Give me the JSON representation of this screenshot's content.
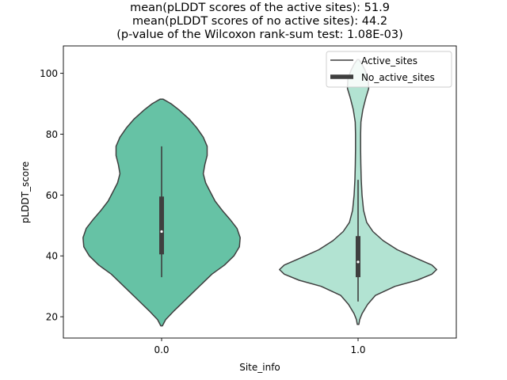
{
  "chart_data": {
    "type": "violin",
    "title_lines": [
      "mean(pLDDT scores of the active sites): 51.9",
      "mean(pLDDT scores of no active sites): 44.2",
      "(p-value of the Wilcoxon rank-sum test: 1.08E-03)"
    ],
    "xlabel": "Site_info",
    "ylabel": "pLDDT_score",
    "categories": [
      "0.0",
      "1.0"
    ],
    "ylim": [
      13,
      109
    ],
    "yticks": [
      20,
      40,
      60,
      80,
      100
    ],
    "legend": {
      "position": "top-right",
      "entries": [
        {
          "label": "Active_sites",
          "style": "thin-line"
        },
        {
          "label": "No_active_sites",
          "style": "thick-line"
        }
      ]
    },
    "series": [
      {
        "name": "0.0",
        "color": "#66c2a5",
        "min": 17,
        "max": 91.5,
        "whisker_low": 33,
        "whisker_high": 76,
        "q1": 40.5,
        "q3": 59.5,
        "median": 48,
        "density_profile": [
          [
            17,
            0.01
          ],
          [
            19,
            0.05
          ],
          [
            22,
            0.16
          ],
          [
            25,
            0.28
          ],
          [
            28,
            0.4
          ],
          [
            31,
            0.52
          ],
          [
            34,
            0.64
          ],
          [
            37,
            0.8
          ],
          [
            40,
            0.92
          ],
          [
            43,
            0.99
          ],
          [
            46,
            1.0
          ],
          [
            49,
            0.96
          ],
          [
            52,
            0.87
          ],
          [
            55,
            0.77
          ],
          [
            58,
            0.68
          ],
          [
            61,
            0.62
          ],
          [
            64,
            0.56
          ],
          [
            67,
            0.53
          ],
          [
            70,
            0.55
          ],
          [
            73,
            0.58
          ],
          [
            76,
            0.58
          ],
          [
            79,
            0.53
          ],
          [
            82,
            0.45
          ],
          [
            85,
            0.35
          ],
          [
            88,
            0.22
          ],
          [
            90,
            0.12
          ],
          [
            91.5,
            0.02
          ]
        ]
      },
      {
        "name": "1.0",
        "color": "#b2e3d2",
        "min": 17.5,
        "max": 104.5,
        "whisker_low": 25,
        "whisker_high": 65,
        "q1": 33,
        "q3": 46.5,
        "median": 38,
        "density_profile": [
          [
            17.5,
            0.01
          ],
          [
            19,
            0.02
          ],
          [
            21,
            0.05
          ],
          [
            24,
            0.12
          ],
          [
            27,
            0.22
          ],
          [
            30,
            0.47
          ],
          [
            32,
            0.75
          ],
          [
            34,
            0.94
          ],
          [
            35.5,
            1.0
          ],
          [
            37,
            0.94
          ],
          [
            39,
            0.76
          ],
          [
            42,
            0.5
          ],
          [
            45,
            0.32
          ],
          [
            48,
            0.19
          ],
          [
            51,
            0.11
          ],
          [
            55,
            0.07
          ],
          [
            60,
            0.05
          ],
          [
            65,
            0.04
          ],
          [
            70,
            0.035
          ],
          [
            75,
            0.032
          ],
          [
            80,
            0.032
          ],
          [
            84,
            0.036
          ],
          [
            88,
            0.06
          ],
          [
            92,
            0.1
          ],
          [
            95,
            0.135
          ],
          [
            98,
            0.13
          ],
          [
            101,
            0.09
          ],
          [
            103,
            0.05
          ],
          [
            104.5,
            0.01
          ]
        ]
      }
    ]
  }
}
